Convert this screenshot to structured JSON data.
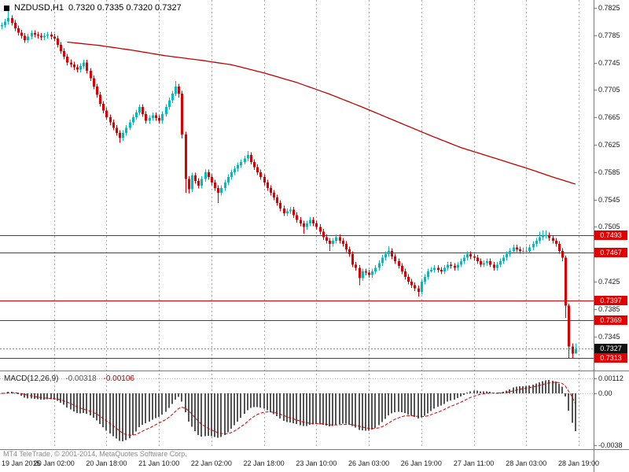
{
  "window": {
    "symbol_period": "NZDUSD,H1",
    "ohlc_text": "0.7320 0.7335 0.7320 0.7327"
  },
  "footer": {
    "copyright": "MT4 TeleTrade, © 2001-2014, MetaQuotes Software Corp."
  },
  "colors": {
    "up": "#00bdbd",
    "down": "#dd0000",
    "ma": "#c00000",
    "levels": "#e00000",
    "grid": "#a6a6a6",
    "histogram": "#555555",
    "signal": "#cc0000",
    "tag_level_bg": "#e00000",
    "tag_current_bg": "#111111",
    "border": "#7a7a7a"
  },
  "chart_data": {
    "type": "candlestick",
    "symbol": "NZDUSD",
    "timeframe": "H1",
    "current": {
      "open": 0.732,
      "high": 0.7335,
      "low": 0.732,
      "close": 0.7327
    },
    "y_ticks": [
      "0.7825",
      "0.7785",
      "0.7745",
      "0.7705",
      "0.7665",
      "0.7625",
      "0.7585",
      "0.7545",
      "0.7505",
      "0.7465",
      "0.7425",
      "0.7385",
      "0.7345"
    ],
    "x_labels": [
      {
        "label": "19 Jan 2015",
        "bar": 0
      },
      {
        "label": "20 Jan 02:00",
        "bar": 16
      },
      {
        "label": "20 Jan 18:00",
        "bar": 32
      },
      {
        "label": "21 Jan 10:00",
        "bar": 48
      },
      {
        "label": "22 Jan 02:00",
        "bar": 64
      },
      {
        "label": "22 Jan 18:00",
        "bar": 80
      },
      {
        "label": "23 Jan 10:00",
        "bar": 96
      },
      {
        "label": "26 Jan 03:00",
        "bar": 112
      },
      {
        "label": "26 Jan 19:00",
        "bar": 128
      },
      {
        "label": "27 Jan 11:00",
        "bar": 144
      },
      {
        "label": "28 Jan 03:00",
        "bar": 160
      },
      {
        "label": "28 Jan 19:00",
        "bar": 176
      }
    ],
    "hlines": [
      {
        "label": "0.7493",
        "v": 0.7493
      },
      {
        "label": "0.7467",
        "v": 0.7467
      },
      {
        "label": "0.7397",
        "v": 0.7397
      },
      {
        "label": "0.7369",
        "v": 0.7369
      },
      {
        "label": "0.7313",
        "v": 0.7313
      }
    ],
    "current_price": {
      "label": "0.7327",
      "v": 0.7327
    },
    "ma_line": {
      "name": "moving-average",
      "points": [
        [
          20,
          0.7775
        ],
        [
          30,
          0.777
        ],
        [
          40,
          0.7763
        ],
        [
          50,
          0.7755
        ],
        [
          60,
          0.7749
        ],
        [
          70,
          0.7742
        ],
        [
          80,
          0.773
        ],
        [
          90,
          0.7716
        ],
        [
          100,
          0.7699
        ],
        [
          110,
          0.768
        ],
        [
          120,
          0.766
        ],
        [
          130,
          0.764
        ],
        [
          140,
          0.7621
        ],
        [
          150,
          0.7606
        ],
        [
          160,
          0.7591
        ],
        [
          168,
          0.7578
        ],
        [
          176,
          0.7566
        ]
      ]
    },
    "macd": {
      "label": "MACD(12,26,9)",
      "value_main": "-0.00318",
      "value_signal": "-0.00106",
      "params": [
        12,
        26,
        9
      ],
      "ticks": [
        {
          "label": "0.00112",
          "v": 0.00112
        },
        {
          "label": "0.00",
          "v": 0
        },
        {
          "label": "-0.0038",
          "v": -0.0038
        }
      ]
    },
    "candles": [
      [
        0.7798,
        0.7804,
        0.7794,
        0.78
      ],
      [
        0.78,
        0.7809,
        0.7796,
        0.7805
      ],
      [
        0.7805,
        0.7823,
        0.7801,
        0.781
      ],
      [
        0.781,
        0.7814,
        0.7799,
        0.7803
      ],
      [
        0.7803,
        0.7807,
        0.7791,
        0.7795
      ],
      [
        0.7795,
        0.7799,
        0.7785,
        0.7789
      ],
      [
        0.7789,
        0.7793,
        0.778,
        0.7784
      ],
      [
        0.7784,
        0.7788,
        0.7774,
        0.7778
      ],
      [
        0.7778,
        0.7787,
        0.7774,
        0.7783
      ],
      [
        0.7783,
        0.7792,
        0.7779,
        0.7788
      ],
      [
        0.7788,
        0.7792,
        0.7782,
        0.7786
      ],
      [
        0.7786,
        0.779,
        0.778,
        0.7784
      ],
      [
        0.7784,
        0.7788,
        0.7778,
        0.7782
      ],
      [
        0.7782,
        0.7788,
        0.7778,
        0.7784
      ],
      [
        0.7784,
        0.779,
        0.778,
        0.7786
      ],
      [
        0.7786,
        0.779,
        0.7779,
        0.7783
      ],
      [
        0.7783,
        0.7787,
        0.7776,
        0.778
      ],
      [
        0.778,
        0.7784,
        0.7767,
        0.7771
      ],
      [
        0.7771,
        0.7775,
        0.7758,
        0.7762
      ],
      [
        0.7762,
        0.7766,
        0.775,
        0.7754
      ],
      [
        0.7754,
        0.7758,
        0.7741,
        0.7745
      ],
      [
        0.7745,
        0.775,
        0.7738,
        0.7742
      ],
      [
        0.7742,
        0.7746,
        0.7734,
        0.7738
      ],
      [
        0.7738,
        0.7742,
        0.7731,
        0.7735
      ],
      [
        0.7735,
        0.7744,
        0.7731,
        0.774
      ],
      [
        0.774,
        0.7749,
        0.7736,
        0.7745
      ],
      [
        0.7745,
        0.7749,
        0.7729,
        0.7733
      ],
      [
        0.7733,
        0.7737,
        0.7718,
        0.7722
      ],
      [
        0.7722,
        0.7726,
        0.7706,
        0.771
      ],
      [
        0.771,
        0.7714,
        0.7694,
        0.7698
      ],
      [
        0.7698,
        0.7702,
        0.7681,
        0.7685
      ],
      [
        0.7685,
        0.7689,
        0.7671,
        0.7675
      ],
      [
        0.7675,
        0.7679,
        0.7661,
        0.7665
      ],
      [
        0.7665,
        0.7669,
        0.7654,
        0.7658
      ],
      [
        0.7658,
        0.7662,
        0.7646,
        0.765
      ],
      [
        0.765,
        0.7654,
        0.7638,
        0.7642
      ],
      [
        0.7642,
        0.7646,
        0.7628,
        0.7635
      ],
      [
        0.7635,
        0.7646,
        0.7631,
        0.7642
      ],
      [
        0.7642,
        0.7654,
        0.7638,
        0.765
      ],
      [
        0.765,
        0.7662,
        0.7646,
        0.7658
      ],
      [
        0.7658,
        0.7669,
        0.7654,
        0.7665
      ],
      [
        0.7665,
        0.7676,
        0.7661,
        0.7672
      ],
      [
        0.7672,
        0.7684,
        0.7668,
        0.768
      ],
      [
        0.768,
        0.7684,
        0.7666,
        0.767
      ],
      [
        0.767,
        0.7674,
        0.7656,
        0.766
      ],
      [
        0.766,
        0.7668,
        0.7656,
        0.7664
      ],
      [
        0.7664,
        0.7672,
        0.766,
        0.7668
      ],
      [
        0.7668,
        0.7672,
        0.766,
        0.7664
      ],
      [
        0.7664,
        0.7668,
        0.7656,
        0.766
      ],
      [
        0.766,
        0.7674,
        0.7656,
        0.767
      ],
      [
        0.767,
        0.7684,
        0.7666,
        0.768
      ],
      [
        0.768,
        0.7694,
        0.7676,
        0.769
      ],
      [
        0.769,
        0.7704,
        0.7686,
        0.77
      ],
      [
        0.77,
        0.7718,
        0.7696,
        0.771
      ],
      [
        0.771,
        0.7714,
        0.7694,
        0.77
      ],
      [
        0.77,
        0.7704,
        0.7634,
        0.764
      ],
      [
        0.764,
        0.7644,
        0.7555,
        0.7575
      ],
      [
        0.7575,
        0.7579,
        0.7554,
        0.756
      ],
      [
        0.756,
        0.7584,
        0.7556,
        0.758
      ],
      [
        0.758,
        0.7584,
        0.7568,
        0.7572
      ],
      [
        0.7572,
        0.7576,
        0.7561,
        0.7565
      ],
      [
        0.7565,
        0.7579,
        0.7561,
        0.7575
      ],
      [
        0.7575,
        0.7589,
        0.7571,
        0.7585
      ],
      [
        0.7585,
        0.7589,
        0.7574,
        0.7578
      ],
      [
        0.7578,
        0.7582,
        0.7566,
        0.757
      ],
      [
        0.757,
        0.7574,
        0.7558,
        0.7562
      ],
      [
        0.7562,
        0.7566,
        0.754,
        0.7555
      ],
      [
        0.7555,
        0.7566,
        0.7551,
        0.7562
      ],
      [
        0.7562,
        0.7574,
        0.7558,
        0.757
      ],
      [
        0.757,
        0.7582,
        0.7566,
        0.7578
      ],
      [
        0.7578,
        0.7589,
        0.7574,
        0.7585
      ],
      [
        0.7585,
        0.7594,
        0.7581,
        0.759
      ],
      [
        0.759,
        0.7599,
        0.7586,
        0.7595
      ],
      [
        0.7595,
        0.7604,
        0.7591,
        0.76
      ],
      [
        0.76,
        0.7609,
        0.7596,
        0.7605
      ],
      [
        0.7605,
        0.7616,
        0.7601,
        0.761
      ],
      [
        0.761,
        0.7614,
        0.7596,
        0.76
      ],
      [
        0.76,
        0.7604,
        0.7588,
        0.7592
      ],
      [
        0.7592,
        0.7596,
        0.7581,
        0.7585
      ],
      [
        0.7585,
        0.7589,
        0.7574,
        0.7578
      ],
      [
        0.7578,
        0.7582,
        0.7566,
        0.757
      ],
      [
        0.757,
        0.7574,
        0.7558,
        0.7562
      ],
      [
        0.7562,
        0.7566,
        0.7551,
        0.7555
      ],
      [
        0.7555,
        0.7559,
        0.7544,
        0.7548
      ],
      [
        0.7548,
        0.7552,
        0.7536,
        0.754
      ],
      [
        0.754,
        0.7544,
        0.7528,
        0.7532
      ],
      [
        0.7532,
        0.7536,
        0.7521,
        0.7525
      ],
      [
        0.7525,
        0.7532,
        0.7521,
        0.7528
      ],
      [
        0.7528,
        0.7534,
        0.7524,
        0.753
      ],
      [
        0.753,
        0.7534,
        0.7518,
        0.7522
      ],
      [
        0.7522,
        0.7526,
        0.7511,
        0.7515
      ],
      [
        0.7515,
        0.7519,
        0.7506,
        0.751
      ],
      [
        0.751,
        0.7514,
        0.7495,
        0.7505
      ],
      [
        0.7505,
        0.7514,
        0.7501,
        0.751
      ],
      [
        0.751,
        0.7519,
        0.7506,
        0.7515
      ],
      [
        0.7515,
        0.7519,
        0.7506,
        0.751
      ],
      [
        0.751,
        0.7514,
        0.7501,
        0.7505
      ],
      [
        0.7505,
        0.7509,
        0.7494,
        0.7498
      ],
      [
        0.7498,
        0.7502,
        0.7486,
        0.749
      ],
      [
        0.749,
        0.7494,
        0.7481,
        0.7485
      ],
      [
        0.7485,
        0.7489,
        0.747,
        0.748
      ],
      [
        0.748,
        0.7489,
        0.7476,
        0.7485
      ],
      [
        0.7485,
        0.7494,
        0.7481,
        0.749
      ],
      [
        0.749,
        0.7494,
        0.7481,
        0.7485
      ],
      [
        0.7485,
        0.7489,
        0.7476,
        0.748
      ],
      [
        0.748,
        0.7484,
        0.7468,
        0.7472
      ],
      [
        0.7472,
        0.7476,
        0.7461,
        0.7465
      ],
      [
        0.7465,
        0.7469,
        0.7446,
        0.745
      ],
      [
        0.745,
        0.7454,
        0.7441,
        0.7445
      ],
      [
        0.7445,
        0.7449,
        0.742,
        0.743
      ],
      [
        0.743,
        0.7444,
        0.7426,
        0.744
      ],
      [
        0.744,
        0.7444,
        0.7434,
        0.7438
      ],
      [
        0.7438,
        0.7442,
        0.7431,
        0.7435
      ],
      [
        0.7435,
        0.7444,
        0.7431,
        0.744
      ],
      [
        0.744,
        0.7449,
        0.7436,
        0.7445
      ],
      [
        0.7445,
        0.7456,
        0.7441,
        0.7452
      ],
      [
        0.7452,
        0.7464,
        0.7448,
        0.746
      ],
      [
        0.746,
        0.7469,
        0.7456,
        0.7465
      ],
      [
        0.7465,
        0.7477,
        0.7461,
        0.747
      ],
      [
        0.747,
        0.7474,
        0.7458,
        0.7462
      ],
      [
        0.7462,
        0.7466,
        0.7451,
        0.7455
      ],
      [
        0.7455,
        0.7459,
        0.7444,
        0.7448
      ],
      [
        0.7448,
        0.7452,
        0.7436,
        0.744
      ],
      [
        0.744,
        0.7444,
        0.7428,
        0.7432
      ],
      [
        0.7432,
        0.7436,
        0.7421,
        0.7425
      ],
      [
        0.7425,
        0.7429,
        0.7416,
        0.742
      ],
      [
        0.742,
        0.7424,
        0.7411,
        0.7415
      ],
      [
        0.7415,
        0.7419,
        0.7403,
        0.741
      ],
      [
        0.741,
        0.7429,
        0.7406,
        0.7425
      ],
      [
        0.7425,
        0.7436,
        0.7421,
        0.7432
      ],
      [
        0.7432,
        0.7444,
        0.7428,
        0.744
      ],
      [
        0.744,
        0.7446,
        0.7438,
        0.7442
      ],
      [
        0.7442,
        0.7449,
        0.7438,
        0.7445
      ],
      [
        0.7445,
        0.7449,
        0.7438,
        0.7442
      ],
      [
        0.7442,
        0.7446,
        0.7436,
        0.744
      ],
      [
        0.744,
        0.7449,
        0.7436,
        0.7445
      ],
      [
        0.7445,
        0.7454,
        0.7441,
        0.745
      ],
      [
        0.745,
        0.7454,
        0.7444,
        0.7448
      ],
      [
        0.7448,
        0.7452,
        0.7441,
        0.7445
      ],
      [
        0.7445,
        0.7454,
        0.7441,
        0.745
      ],
      [
        0.745,
        0.7459,
        0.7446,
        0.7455
      ],
      [
        0.7455,
        0.7464,
        0.7451,
        0.746
      ],
      [
        0.746,
        0.7469,
        0.7456,
        0.7465
      ],
      [
        0.7465,
        0.7469,
        0.7458,
        0.7462
      ],
      [
        0.7462,
        0.7466,
        0.7456,
        0.746
      ],
      [
        0.746,
        0.7464,
        0.7451,
        0.7455
      ],
      [
        0.7455,
        0.7459,
        0.7446,
        0.745
      ],
      [
        0.745,
        0.7456,
        0.7446,
        0.7452
      ],
      [
        0.7452,
        0.7459,
        0.7448,
        0.7455
      ],
      [
        0.7455,
        0.7459,
        0.7446,
        0.745
      ],
      [
        0.745,
        0.7454,
        0.7441,
        0.7445
      ],
      [
        0.7445,
        0.7454,
        0.7441,
        0.745
      ],
      [
        0.745,
        0.7459,
        0.7446,
        0.7455
      ],
      [
        0.7455,
        0.7464,
        0.7451,
        0.746
      ],
      [
        0.746,
        0.7469,
        0.7456,
        0.7465
      ],
      [
        0.7465,
        0.7474,
        0.7461,
        0.747
      ],
      [
        0.747,
        0.7479,
        0.7466,
        0.7475
      ],
      [
        0.7475,
        0.7479,
        0.7468,
        0.7472
      ],
      [
        0.7472,
        0.7476,
        0.7466,
        0.747
      ],
      [
        0.747,
        0.7475,
        0.7465,
        0.747
      ],
      [
        0.747,
        0.7476,
        0.7466,
        0.747
      ],
      [
        0.747,
        0.7479,
        0.7466,
        0.7475
      ],
      [
        0.7475,
        0.7484,
        0.7471,
        0.748
      ],
      [
        0.748,
        0.7489,
        0.7476,
        0.7485
      ],
      [
        0.7485,
        0.7498,
        0.7481,
        0.749
      ],
      [
        0.749,
        0.75,
        0.7486,
        0.7492
      ],
      [
        0.7492,
        0.75,
        0.7488,
        0.7493
      ],
      [
        0.7493,
        0.7497,
        0.7485,
        0.7489
      ],
      [
        0.7489,
        0.7493,
        0.7481,
        0.7485
      ],
      [
        0.7485,
        0.7489,
        0.7476,
        0.748
      ],
      [
        0.748,
        0.7484,
        0.7466,
        0.747
      ],
      [
        0.747,
        0.7474,
        0.7455,
        0.746
      ],
      [
        0.746,
        0.7463,
        0.7372,
        0.739
      ],
      [
        0.739,
        0.7393,
        0.7313,
        0.733
      ],
      [
        0.733,
        0.7335,
        0.7313,
        0.732
      ],
      [
        0.732,
        0.7335,
        0.732,
        0.7327
      ]
    ]
  }
}
